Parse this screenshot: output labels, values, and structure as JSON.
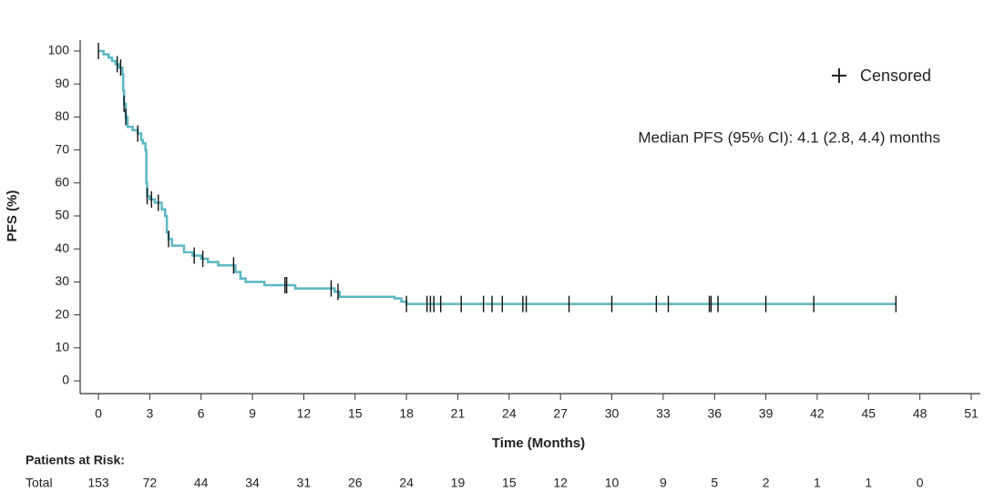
{
  "chart_data": {
    "type": "line",
    "x_label": "Time (Months)",
    "y_label": "PFS (%)",
    "annotation": "Median PFS (95% CI): 4.1 (2.8, 4.4) months",
    "xlim": [
      0,
      51
    ],
    "ylim": [
      0,
      100
    ],
    "xticks": [
      0,
      3,
      6,
      9,
      12,
      15,
      18,
      21,
      24,
      27,
      30,
      33,
      36,
      39,
      42,
      45,
      48,
      51
    ],
    "yticks": [
      0,
      10,
      20,
      30,
      40,
      50,
      60,
      70,
      80,
      90,
      100
    ],
    "series": [
      {
        "color": "#5bb8c4",
        "x": [
          0,
          0.3,
          0.3,
          0.6,
          0.6,
          0.8,
          0.8,
          1.0,
          1.0,
          1.2,
          1.2,
          1.4,
          1.4,
          1.45,
          1.45,
          1.5,
          1.5,
          1.6,
          1.6,
          1.7,
          1.7,
          2.0,
          2.0,
          2.3,
          2.3,
          2.5,
          2.5,
          2.6,
          2.6,
          2.75,
          2.75,
          2.8,
          2.8,
          2.85,
          2.85,
          3.0,
          3.0,
          3.3,
          3.3,
          3.7,
          3.7,
          3.9,
          3.9,
          4.0,
          4.0,
          4.1,
          4.1,
          4.3,
          4.3,
          5.0,
          5.0,
          5.5,
          5.5,
          6.0,
          6.0,
          6.4,
          6.4,
          7.0,
          7.0,
          8.0,
          8.0,
          8.3,
          8.3,
          8.6,
          8.6,
          9.7,
          9.7,
          11.5,
          11.5,
          13.8,
          13.8,
          14.1,
          14.1,
          17.3,
          17.3,
          17.7,
          17.7,
          18.0,
          18.0,
          46.6
        ],
        "values": [
          100,
          100,
          99,
          99,
          98,
          98,
          97,
          97,
          96,
          96,
          95,
          95,
          93,
          93,
          88,
          88,
          84,
          84,
          80,
          80,
          77,
          77,
          76,
          76,
          75,
          75,
          73,
          73,
          72,
          72,
          70,
          70,
          60,
          60,
          56,
          56,
          55,
          55,
          54,
          54,
          52,
          52,
          50,
          50,
          45,
          45,
          43,
          43,
          41,
          41,
          39,
          39,
          38,
          38,
          37,
          37,
          36,
          36,
          35,
          35,
          33,
          33,
          31,
          31,
          30,
          30,
          29,
          29,
          28,
          28,
          27,
          27,
          25.5,
          25.5,
          25,
          25,
          24,
          24,
          23.3,
          23.3
        ]
      },
      {
        "name": "Censored",
        "color": "#111111",
        "x": [
          0,
          1.1,
          1.3,
          1.5,
          1.6,
          2.3,
          2.85,
          3.1,
          3.5,
          4.1,
          5.6,
          6.1,
          7.9,
          10.9,
          11.0,
          13.6,
          14.0,
          18.0,
          19.2,
          19.4,
          19.6,
          20.0,
          21.2,
          22.5,
          23.0,
          23.6,
          24.8,
          25.0,
          27.5,
          30.0,
          32.6,
          33.3,
          35.7,
          35.8,
          36.2,
          39.0,
          41.8,
          46.6
        ],
        "values": [
          100,
          96,
          95,
          84,
          80,
          75,
          56,
          55,
          54,
          43,
          38,
          37,
          35,
          29,
          29,
          28,
          27,
          23.3,
          23.3,
          23.3,
          23.3,
          23.3,
          23.3,
          23.3,
          23.3,
          23.3,
          23.3,
          23.3,
          23.3,
          23.3,
          23.3,
          23.3,
          23.3,
          23.3,
          23.3,
          23.3,
          23.3,
          23.3
        ]
      }
    ],
    "risk_table": {
      "title": "Patients at Risk:",
      "row_label": "Total",
      "values": [
        153,
        72,
        44,
        34,
        31,
        26,
        24,
        19,
        15,
        12,
        10,
        9,
        5,
        2,
        1,
        1,
        0
      ]
    }
  }
}
